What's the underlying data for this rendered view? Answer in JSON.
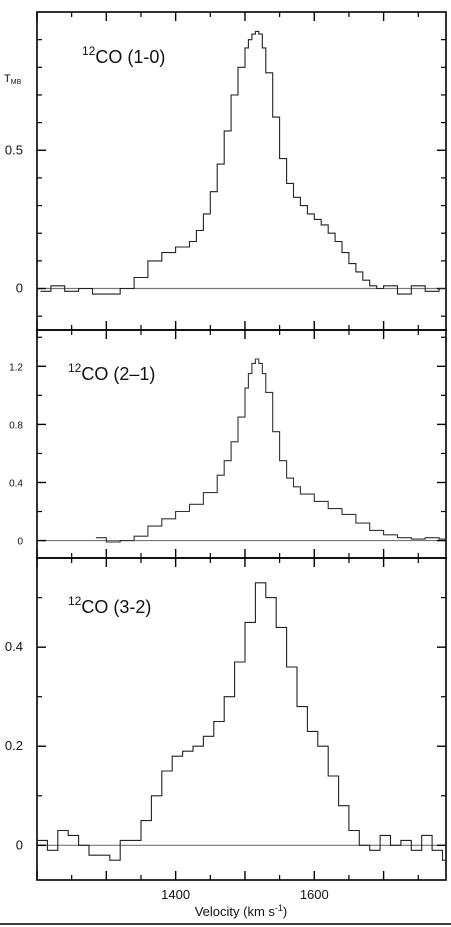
{
  "figure": {
    "xlabel": "Velocity (km s",
    "xlabel_sup": "-1",
    "xlabel_close": ")",
    "ylabel_top": "T",
    "ylabel_top_sub": "MB"
  },
  "chart_data": [
    {
      "type": "line",
      "title_sup": "12",
      "title": "CO (1-0)",
      "xlim": [
        1200,
        1790
      ],
      "ylim": [
        -0.15,
        1.0
      ],
      "yticks": [
        0,
        0.5
      ],
      "yticklabels": [
        "0",
        "0.5"
      ],
      "baseline": 0,
      "series": [
        {
          "x": [
            1205,
            1220,
            1240,
            1260,
            1280,
            1300,
            1320,
            1340,
            1360,
            1380,
            1400,
            1410,
            1420,
            1430,
            1440,
            1450,
            1460,
            1470,
            1480,
            1490,
            1500,
            1505,
            1510,
            1515,
            1520,
            1525,
            1530,
            1540,
            1550,
            1560,
            1570,
            1580,
            1590,
            1600,
            1610,
            1620,
            1630,
            1640,
            1650,
            1660,
            1670,
            1680,
            1690,
            1700,
            1720,
            1740,
            1760,
            1780
          ],
          "y": [
            -0.01,
            0.01,
            -0.01,
            0.0,
            -0.02,
            -0.02,
            0.0,
            0.04,
            0.1,
            0.13,
            0.15,
            0.15,
            0.17,
            0.21,
            0.27,
            0.35,
            0.45,
            0.57,
            0.7,
            0.8,
            0.87,
            0.9,
            0.92,
            0.93,
            0.92,
            0.87,
            0.78,
            0.62,
            0.47,
            0.38,
            0.33,
            0.3,
            0.27,
            0.25,
            0.23,
            0.2,
            0.17,
            0.13,
            0.09,
            0.06,
            0.03,
            0.01,
            0.0,
            0.01,
            -0.02,
            0.01,
            -0.01,
            0.0
          ]
        }
      ]
    },
    {
      "type": "line",
      "title_sup": "12",
      "title": "CO (2–1)",
      "xlim": [
        1200,
        1790
      ],
      "ylim": [
        -0.12,
        1.45
      ],
      "yticks": [
        0,
        0.4,
        0.8,
        1.2
      ],
      "yticklabels": [
        "0",
        "0.4",
        "0.8",
        "1.2"
      ],
      "baseline": 0,
      "series": [
        {
          "x": [
            1285,
            1300,
            1320,
            1340,
            1360,
            1380,
            1400,
            1420,
            1440,
            1460,
            1470,
            1480,
            1490,
            1500,
            1505,
            1510,
            1515,
            1520,
            1525,
            1530,
            1540,
            1550,
            1560,
            1570,
            1580,
            1600,
            1620,
            1640,
            1660,
            1680,
            1700,
            1720,
            1740,
            1760,
            1780
          ],
          "y": [
            0.02,
            -0.01,
            0.0,
            0.03,
            0.1,
            0.15,
            0.2,
            0.25,
            0.33,
            0.45,
            0.55,
            0.68,
            0.85,
            1.05,
            1.15,
            1.22,
            1.25,
            1.22,
            1.15,
            1.02,
            0.75,
            0.55,
            0.43,
            0.37,
            0.32,
            0.27,
            0.22,
            0.18,
            0.12,
            0.07,
            0.04,
            0.02,
            0.01,
            0.02,
            0.01
          ]
        }
      ]
    },
    {
      "type": "line",
      "title_sup": "12",
      "title": "CO (3-2)",
      "xlim": [
        1200,
        1790
      ],
      "ylim": [
        -0.07,
        0.58
      ],
      "yticks": [
        0,
        0.2,
        0.4
      ],
      "yticklabels": [
        "0",
        "0.2",
        "0.4"
      ],
      "xticks": [
        1400,
        1600
      ],
      "xticklabels": [
        "1400",
        "1600"
      ],
      "baseline": 0,
      "series": [
        {
          "x": [
            1200,
            1215,
            1230,
            1245,
            1260,
            1275,
            1290,
            1305,
            1320,
            1335,
            1350,
            1365,
            1380,
            1395,
            1410,
            1425,
            1440,
            1455,
            1470,
            1485,
            1500,
            1515,
            1530,
            1545,
            1560,
            1575,
            1590,
            1605,
            1620,
            1635,
            1650,
            1665,
            1680,
            1695,
            1710,
            1725,
            1740,
            1755,
            1770,
            1785
          ],
          "y": [
            0.01,
            -0.01,
            0.03,
            0.02,
            0.0,
            -0.02,
            -0.02,
            -0.03,
            0.01,
            0.01,
            0.05,
            0.1,
            0.15,
            0.18,
            0.19,
            0.2,
            0.22,
            0.25,
            0.3,
            0.37,
            0.45,
            0.53,
            0.5,
            0.44,
            0.36,
            0.28,
            0.23,
            0.2,
            0.14,
            0.08,
            0.03,
            0.0,
            -0.01,
            0.02,
            0.0,
            0.01,
            -0.01,
            0.02,
            -0.01,
            -0.03
          ]
        }
      ]
    }
  ]
}
